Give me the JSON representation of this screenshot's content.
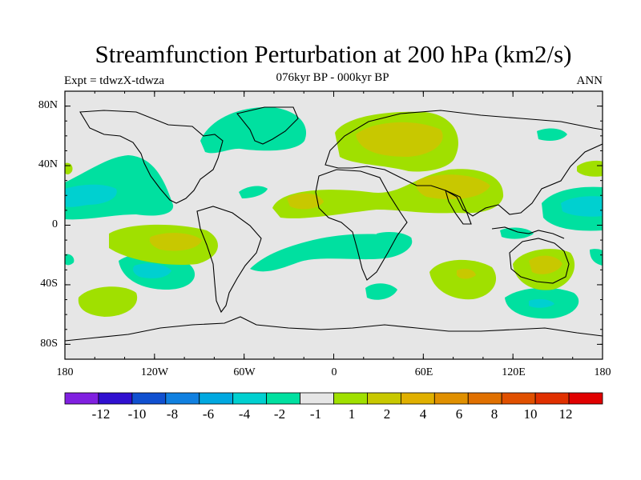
{
  "header": {
    "title": "Streamfunction Perturbation at 200 hPa (km2/s)",
    "subtitle": "076kyr BP - 000kyr BP",
    "experiment": "Expt = tdwzX-tdwza",
    "season": "ANN"
  },
  "axes": {
    "lat_labels": [
      "80N",
      "40N",
      "0",
      "40S",
      "80S"
    ],
    "lon_labels": [
      "180",
      "120W",
      "60W",
      "0",
      "60E",
      "120E",
      "180"
    ]
  },
  "colors": {
    "land_bg": "#e6e6e6",
    "neg_light": "#00e0a0",
    "neg_mid": "#00d0d0",
    "pos_light": "#a0e000",
    "pos_mid": "#c8c800"
  },
  "colorbar": {
    "colors": [
      "#8020e0",
      "#3010d0",
      "#1050d0",
      "#1080e0",
      "#00a8e0",
      "#00d0d0",
      "#00e0a0",
      "#e6e6e6",
      "#a0e000",
      "#c8c800",
      "#e0b000",
      "#e09000",
      "#e07000",
      "#e05000",
      "#e03000",
      "#e00000"
    ],
    "labels": [
      "-12",
      "-10",
      "-8",
      "-6",
      "-4",
      "-2",
      "-1",
      "1",
      "2",
      "4",
      "6",
      "8",
      "10",
      "12"
    ]
  }
}
